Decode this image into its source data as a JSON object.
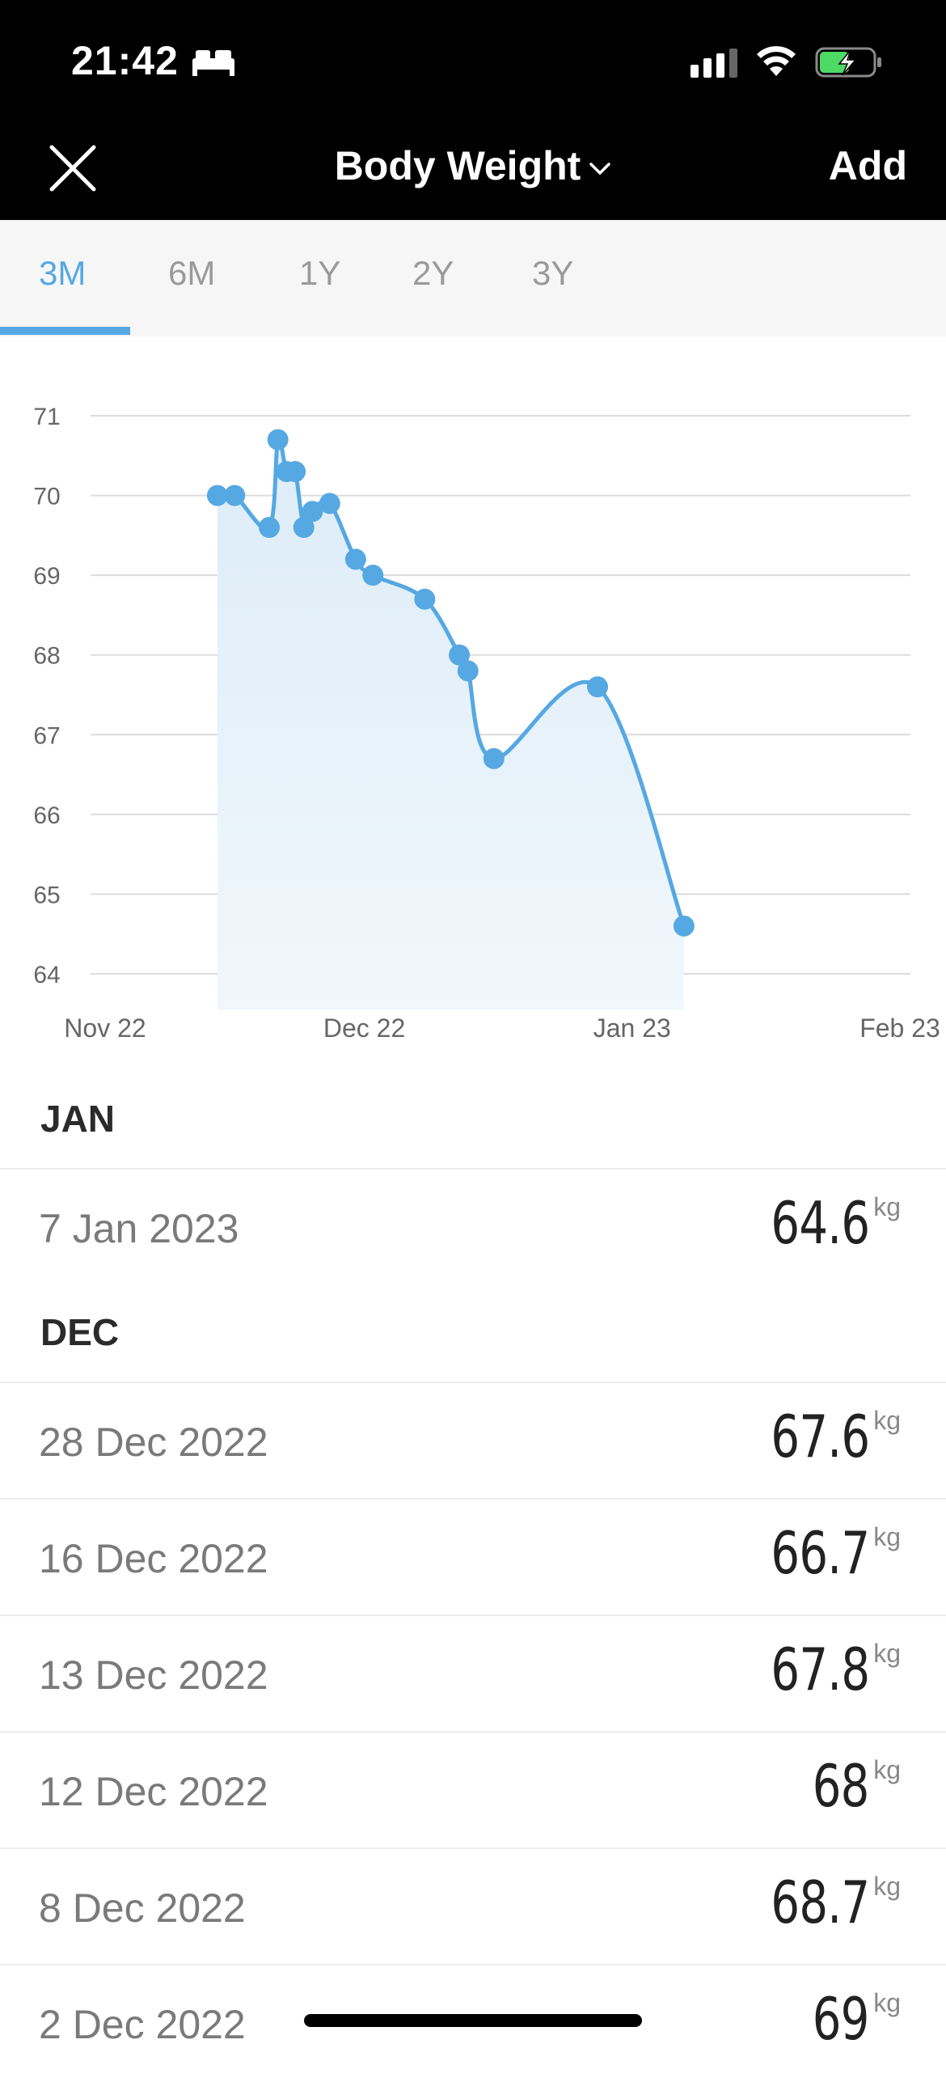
{
  "status_bar": {
    "time": "21:42"
  },
  "nav": {
    "title": "Body Weight",
    "add_label": "Add"
  },
  "tabs": [
    {
      "label": "3M",
      "active": true
    },
    {
      "label": "6M",
      "active": false
    },
    {
      "label": "1Y",
      "active": false
    },
    {
      "label": "2Y",
      "active": false
    },
    {
      "label": "3Y",
      "active": false
    }
  ],
  "colors": {
    "accent": "#56a8e2",
    "topbar": "#000000",
    "battery": "#4cd964"
  },
  "chart_data": {
    "type": "area",
    "title": "",
    "xlabel": "",
    "ylabel": "",
    "x_ticks": [
      "Nov 22",
      "Dec 22",
      "Jan 23",
      "Feb 23"
    ],
    "y_ticks": [
      64,
      65,
      66,
      67,
      68,
      69,
      70,
      71
    ],
    "ylim": [
      64,
      71
    ],
    "xlim": [
      "2022-11-01",
      "2023-02-01"
    ],
    "grid": true,
    "series": [
      {
        "name": "",
        "points": [
          {
            "date": "2022-11-14",
            "value": 70.0
          },
          {
            "date": "2022-11-16",
            "value": 70.0
          },
          {
            "date": "2022-11-20",
            "value": 69.6
          },
          {
            "date": "2022-11-21",
            "value": 70.7
          },
          {
            "date": "2022-11-22",
            "value": 70.3
          },
          {
            "date": "2022-11-23",
            "value": 70.3
          },
          {
            "date": "2022-11-24",
            "value": 69.6
          },
          {
            "date": "2022-11-25",
            "value": 69.8
          },
          {
            "date": "2022-11-27",
            "value": 69.9
          },
          {
            "date": "2022-11-30",
            "value": 69.2
          },
          {
            "date": "2022-12-02",
            "value": 69.0
          },
          {
            "date": "2022-12-08",
            "value": 68.7
          },
          {
            "date": "2022-12-12",
            "value": 68.0
          },
          {
            "date": "2022-12-13",
            "value": 67.8
          },
          {
            "date": "2022-12-16",
            "value": 66.7
          },
          {
            "date": "2022-12-28",
            "value": 67.6
          },
          {
            "date": "2023-01-07",
            "value": 64.6
          }
        ]
      }
    ]
  },
  "history": {
    "jan": {
      "header": "JAN",
      "entries": [
        {
          "date": "7 Jan 2023",
          "value": "64.6",
          "unit": "kg"
        }
      ]
    },
    "dec": {
      "header": "DEC",
      "entries": [
        {
          "date": "28 Dec 2022",
          "value": "67.6",
          "unit": "kg"
        },
        {
          "date": "16 Dec 2022",
          "value": "66.7",
          "unit": "kg"
        },
        {
          "date": "13 Dec 2022",
          "value": "67.8",
          "unit": "kg"
        },
        {
          "date": "12 Dec 2022",
          "value": "68",
          "unit": "kg"
        },
        {
          "date": "8 Dec 2022",
          "value": "68.7",
          "unit": "kg"
        },
        {
          "date": "2 Dec 2022",
          "value": "69",
          "unit": "kg"
        }
      ]
    }
  }
}
